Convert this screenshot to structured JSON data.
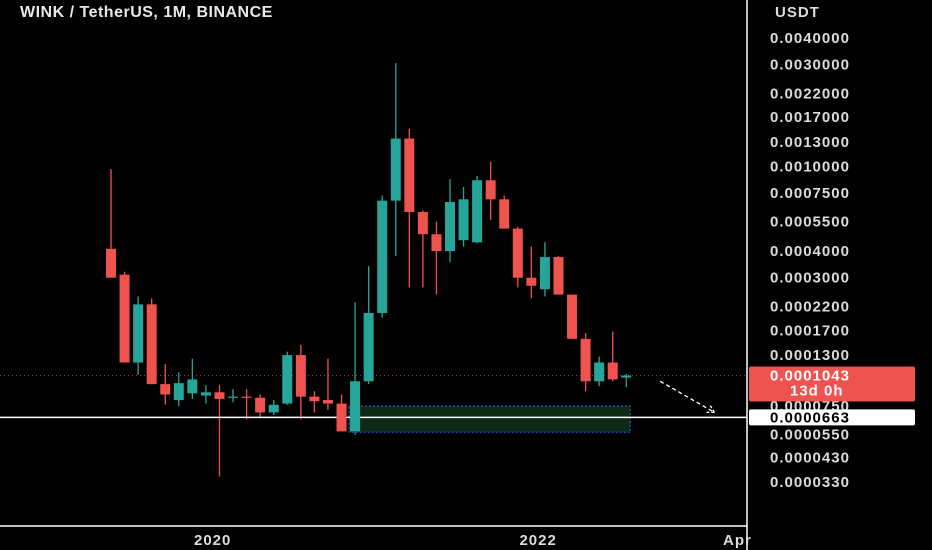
{
  "header": {
    "title": "WINK / TetherUS, 1M, BINANCE"
  },
  "chart_data": {
    "type": "candlestick",
    "title": "WINK / TetherUS, 1M, BINANCE",
    "ylabel": "USDT",
    "yscale": "log",
    "ylim": [
      2.72e-05,
      0.0053
    ],
    "y_ticks": [
      {
        "value": 0.004,
        "label": "0.0040000"
      },
      {
        "value": 0.003,
        "label": "0.0030000"
      },
      {
        "value": 0.0022,
        "label": "0.0022000"
      },
      {
        "value": 0.0017,
        "label": "0.0017000"
      },
      {
        "value": 0.0013,
        "label": "0.0013000"
      },
      {
        "value": 0.001,
        "label": "0.0010000"
      },
      {
        "value": 0.00075,
        "label": "0.0007500"
      },
      {
        "value": 0.00055,
        "label": "0.0005500"
      },
      {
        "value": 0.0004,
        "label": "0.0004000"
      },
      {
        "value": 0.0003,
        "label": "0.0003000"
      },
      {
        "value": 0.00022,
        "label": "0.0002200"
      },
      {
        "value": 0.00017,
        "label": "0.0001700"
      },
      {
        "value": 0.00013,
        "label": "0.0001300"
      },
      {
        "value": 0.0001,
        "label": ""
      },
      {
        "value": 7.5e-05,
        "label": "0.0000750"
      },
      {
        "value": 6e-05,
        "label": ""
      },
      {
        "value": 5.5e-05,
        "label": "0.0000550"
      },
      {
        "value": 4.3e-05,
        "label": "0.0000430"
      },
      {
        "value": 3.3e-05,
        "label": "0.0000330"
      }
    ],
    "x_ticks": [
      {
        "index": 7.5,
        "label": "2020"
      },
      {
        "index": 31.5,
        "label": "2022"
      },
      {
        "index": 46.2,
        "label": "Apr"
      }
    ],
    "candles": [
      {
        "o": 0.00041,
        "h": 0.00097,
        "l": 0.00031,
        "c": 0.0003
      },
      {
        "o": 0.00031,
        "h": 0.00032,
        "l": 0.00013,
        "c": 0.00012
      },
      {
        "o": 0.00012,
        "h": 0.000245,
        "l": 0.000105,
        "c": 0.000225
      },
      {
        "o": 0.000225,
        "h": 0.00024,
        "l": 9.5e-05,
        "c": 9.5e-05
      },
      {
        "o": 9.5e-05,
        "h": 0.000118,
        "l": 7.6e-05,
        "c": 8.5e-05
      },
      {
        "o": 8e-05,
        "h": 0.000108,
        "l": 7.5e-05,
        "c": 9.6e-05
      },
      {
        "o": 8.6e-05,
        "h": 0.000125,
        "l": 8.1e-05,
        "c": 0.0001
      },
      {
        "o": 8.4e-05,
        "h": 9.4e-05,
        "l": 7.7e-05,
        "c": 8.7e-05
      },
      {
        "o": 8.7e-05,
        "h": 9.4e-05,
        "l": 3.5e-05,
        "c": 8.1e-05
      },
      {
        "o": 8.3e-05,
        "h": 9e-05,
        "l": 7.8e-05,
        "c": 8.3e-05
      },
      {
        "o": 8.3e-05,
        "h": 9e-05,
        "l": 6.5e-05,
        "c": 8.2e-05
      },
      {
        "o": 8.2e-05,
        "h": 8.5e-05,
        "l": 6.6e-05,
        "c": 7e-05
      },
      {
        "o": 7e-05,
        "h": 8e-05,
        "l": 6.8e-05,
        "c": 7.6e-05
      },
      {
        "o": 7.7e-05,
        "h": 0.000135,
        "l": 7.6e-05,
        "c": 0.00013
      },
      {
        "o": 0.00013,
        "h": 0.000145,
        "l": 6.5e-05,
        "c": 8.3e-05
      },
      {
        "o": 8.3e-05,
        "h": 8.8e-05,
        "l": 7e-05,
        "c": 7.9e-05
      },
      {
        "o": 8e-05,
        "h": 0.000125,
        "l": 7.2e-05,
        "c": 7.7e-05
      },
      {
        "o": 7.7e-05,
        "h": 8.5e-05,
        "l": 6e-05,
        "c": 5.7e-05
      },
      {
        "o": 5.7e-05,
        "h": 0.00023,
        "l": 5.5e-05,
        "c": 9.8e-05
      },
      {
        "o": 9.8e-05,
        "h": 0.00034,
        "l": 9.5e-05,
        "c": 0.000205
      },
      {
        "o": 0.000205,
        "h": 0.00073,
        "l": 0.000195,
        "c": 0.00069
      },
      {
        "o": 0.00069,
        "h": 0.00305,
        "l": 0.00038,
        "c": 0.00135
      },
      {
        "o": 0.00135,
        "h": 0.0015,
        "l": 0.00027,
        "c": 0.00061
      },
      {
        "o": 0.00061,
        "h": 0.00062,
        "l": 0.00027,
        "c": 0.00048
      },
      {
        "o": 0.00048,
        "h": 0.00055,
        "l": 0.00025,
        "c": 0.0004
      },
      {
        "o": 0.0004,
        "h": 0.00087,
        "l": 0.000355,
        "c": 0.00068
      },
      {
        "o": 0.00045,
        "h": 0.0008,
        "l": 0.00042,
        "c": 0.0007
      },
      {
        "o": 0.00044,
        "h": 0.0009,
        "l": 0.000435,
        "c": 0.00086
      },
      {
        "o": 0.00086,
        "h": 0.00105,
        "l": 0.00056,
        "c": 0.0007
      },
      {
        "o": 0.0007,
        "h": 0.00073,
        "l": 0.00052,
        "c": 0.00051
      },
      {
        "o": 0.00051,
        "h": 0.00052,
        "l": 0.00027,
        "c": 0.0003
      },
      {
        "o": 0.0003,
        "h": 0.00042,
        "l": 0.00024,
        "c": 0.000275
      },
      {
        "o": 0.000265,
        "h": 0.00044,
        "l": 0.000245,
        "c": 0.000375
      },
      {
        "o": 0.000375,
        "h": 0.00038,
        "l": 0.00025,
        "c": 0.00025
      },
      {
        "o": 0.00025,
        "h": 0.00025,
        "l": 0.00017,
        "c": 0.000155
      },
      {
        "o": 0.000155,
        "h": 0.000165,
        "l": 8.8e-05,
        "c": 9.8e-05
      },
      {
        "o": 9.8e-05,
        "h": 0.000128,
        "l": 9.3e-05,
        "c": 0.00012
      },
      {
        "o": 0.00012,
        "h": 0.000168,
        "l": 9.8e-05,
        "c": 0.0001
      },
      {
        "o": 0.000102,
        "h": 0.000106,
        "l": 9.2e-05,
        "c": 0.0001043
      }
    ],
    "demand_zone": {
      "top": 7.5e-05,
      "bottom": 5.65e-05,
      "from_index": 18,
      "to_index": 38
    },
    "horizontal_line": {
      "value": 6.63e-05,
      "label": "0.0000663"
    },
    "current_price": {
      "value": 0.0001043,
      "label": "0.0001043",
      "countdown": "13d 0h"
    },
    "projection": {
      "from_index": 40.5,
      "from_value": 9.8e-05,
      "to_index": 44.5,
      "to_value": 7e-05
    },
    "colors": {
      "up": "#26a69a",
      "down": "#ef5350",
      "zone_fill": "#0f2a14",
      "zone_border": "#2962ff",
      "line": "#ffffff",
      "axis_text": "#dcdcdc"
    }
  }
}
